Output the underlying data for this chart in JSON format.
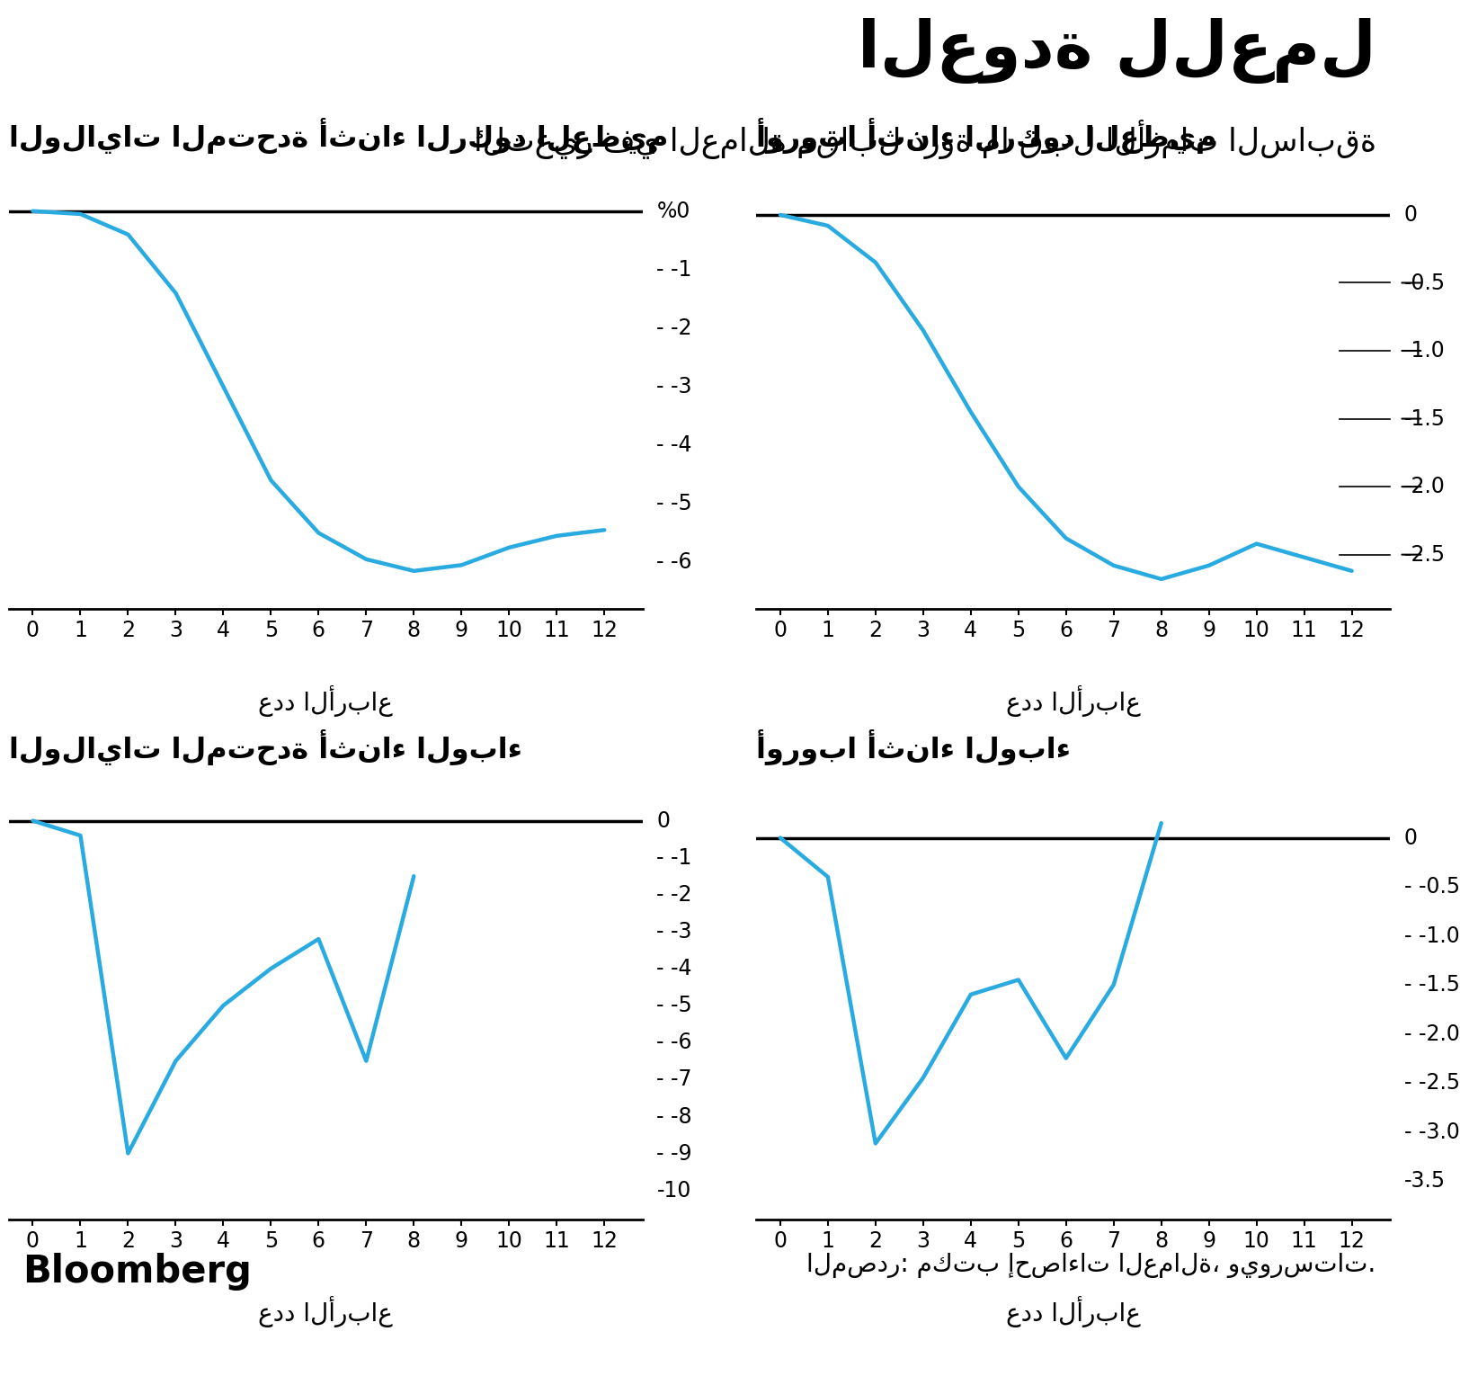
{
  "title": "العودة للعمل",
  "subtitle": "التغير في العمالة مقابل ذروة ما قبل الأزمات السابقة",
  "xlabel": "عدد الأرباع",
  "source_text": "المصدر: مكتب إحصاءات العمالة، ويورستات.",
  "bloomberg_text": "Bloomberg",
  "panels": [
    {
      "title": "الولايات المتحدة أثناء الركود العظيم",
      "x": [
        0,
        1,
        2,
        3,
        4,
        5,
        6,
        7,
        8,
        9,
        10,
        11,
        12
      ],
      "y": [
        0.0,
        -0.05,
        -0.4,
        -1.4,
        -3.0,
        -4.6,
        -5.5,
        -5.95,
        -6.15,
        -6.05,
        -5.75,
        -5.55,
        -5.45
      ],
      "ylim": [
        -6.8,
        0.4
      ],
      "yticks": [
        0,
        -1,
        -2,
        -3,
        -4,
        -5,
        -6
      ],
      "ytick_labels": [
        "%0",
        "-1",
        "-2",
        "-3",
        "-4",
        "-5",
        "-6"
      ],
      "dash_labels": [
        false,
        true,
        true,
        true,
        true,
        true,
        true
      ],
      "has_line_ticks": false
    },
    {
      "title": "أوروبا أثناء الركود العظيم",
      "x": [
        0,
        1,
        2,
        3,
        4,
        5,
        6,
        7,
        8,
        9,
        10,
        11,
        12
      ],
      "y": [
        0.0,
        -0.08,
        -0.35,
        -0.85,
        -1.45,
        -2.0,
        -2.38,
        -2.58,
        -2.68,
        -2.58,
        -2.42,
        -2.52,
        -2.62
      ],
      "ylim": [
        -2.9,
        0.2
      ],
      "yticks": [
        0,
        -0.5,
        -1.0,
        -1.5,
        -2.0,
        -2.5
      ],
      "ytick_labels": [
        "0",
        "-0.5",
        "-1.0",
        "-1.5",
        "-2.0",
        "-2.5"
      ],
      "dash_labels": [
        false,
        false,
        false,
        false,
        false,
        false
      ],
      "has_line_ticks": true
    },
    {
      "title": "الولايات المتحدة أثناء الوباء",
      "x": [
        0,
        1,
        2,
        3,
        4,
        5,
        6,
        7,
        8,
        9,
        10,
        11,
        12
      ],
      "y": [
        0.0,
        -0.4,
        -9.0,
        -6.5,
        -5.0,
        -4.0,
        -3.2,
        -6.5,
        -1.5,
        null,
        null,
        null,
        null
      ],
      "ylim": [
        -10.8,
        0.6
      ],
      "yticks": [
        0,
        -1,
        -2,
        -3,
        -4,
        -5,
        -6,
        -7,
        -8,
        -9,
        -10
      ],
      "ytick_labels": [
        "0",
        "-1",
        "-2",
        "-3",
        "-4",
        "-5",
        "-6",
        "-7",
        "-8",
        "-9",
        "-10"
      ],
      "dash_labels": [
        false,
        true,
        true,
        true,
        true,
        true,
        true,
        true,
        true,
        true,
        false
      ],
      "has_line_ticks": false
    },
    {
      "title": "أوروبا أثناء الوباء",
      "x": [
        0,
        1,
        2,
        3,
        4,
        5,
        6,
        7,
        8,
        9,
        10,
        11,
        12
      ],
      "y": [
        0.0,
        -0.4,
        -3.12,
        -2.45,
        -1.6,
        -1.45,
        -2.25,
        -1.5,
        0.15,
        null,
        null,
        null,
        null
      ],
      "ylim": [
        -3.9,
        0.4
      ],
      "yticks": [
        0,
        -0.5,
        -1.0,
        -1.5,
        -2.0,
        -2.5,
        -3.0,
        -3.5
      ],
      "ytick_labels": [
        "0",
        "-0.5",
        "-1.0",
        "-1.5",
        "-2.0",
        "-2.5",
        "-3.0",
        "-3.5"
      ],
      "dash_labels": [
        false,
        true,
        true,
        true,
        true,
        true,
        true,
        false
      ],
      "has_line_ticks": false
    }
  ],
  "line_color": "#29ABE2",
  "line_width": 3.2,
  "bg_color": "#FFFFFF",
  "axis_line_color": "#000000",
  "tick_color": "#000000",
  "text_color": "#000000"
}
